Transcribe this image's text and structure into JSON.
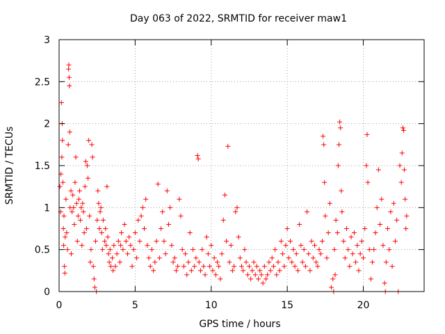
{
  "chart_data": {
    "type": "scatter",
    "title": "Day 063 of 2022, SRMTID for receiver maw1",
    "xlabel": "GPS time / hours",
    "ylabel": "SRMTID / TECUs",
    "xlim": [
      0,
      24
    ],
    "ylim": [
      0,
      3
    ],
    "xticks": [
      0,
      5,
      10,
      15,
      20
    ],
    "xtick_labels": [
      "0",
      "5",
      "10",
      "15",
      "20"
    ],
    "yticks": [
      0,
      0.5,
      1,
      1.5,
      2,
      2.5,
      3
    ],
    "ytick_labels": [
      "0",
      "0.5",
      "1",
      "1.5",
      "2",
      "2.5",
      "3"
    ],
    "grid": true,
    "marker": "+",
    "color": "#ff0000",
    "series": [
      {
        "name": "maw1",
        "points": [
          [
            0.05,
            1.25
          ],
          [
            0.1,
            0.95
          ],
          [
            0.12,
            1.4
          ],
          [
            0.15,
            2.25
          ],
          [
            0.18,
            1.6
          ],
          [
            0.2,
            2.0
          ],
          [
            0.22,
            1.8
          ],
          [
            0.25,
            1.3
          ],
          [
            0.28,
            0.75
          ],
          [
            0.3,
            0.55
          ],
          [
            0.32,
            0.9
          ],
          [
            0.35,
            0.3
          ],
          [
            0.38,
            0.22
          ],
          [
            0.4,
            0.65
          ],
          [
            0.45,
            1.1
          ],
          [
            0.5,
            0.7
          ],
          [
            0.55,
            0.5
          ],
          [
            0.6,
            1.75
          ],
          [
            0.62,
            2.65
          ],
          [
            0.64,
            2.7
          ],
          [
            0.66,
            2.55
          ],
          [
            0.68,
            2.45
          ],
          [
            0.7,
            1.9
          ],
          [
            0.72,
            1.0
          ],
          [
            0.78,
            1.2
          ],
          [
            0.8,
            0.45
          ],
          [
            0.85,
            0.95
          ],
          [
            0.9,
            1.15
          ],
          [
            0.95,
            1.0
          ],
          [
            1.0,
            0.8
          ],
          [
            1.05,
            1.3
          ],
          [
            1.1,
            1.6
          ],
          [
            1.15,
            1.05
          ],
          [
            1.2,
            0.6
          ],
          [
            1.25,
            0.9
          ],
          [
            1.3,
            1.1
          ],
          [
            1.35,
            1.2
          ],
          [
            1.4,
            0.85
          ],
          [
            1.45,
            1.0
          ],
          [
            1.5,
            0.55
          ],
          [
            1.55,
            1.05
          ],
          [
            1.6,
            0.95
          ],
          [
            1.65,
            0.7
          ],
          [
            1.7,
            1.25
          ],
          [
            1.75,
            1.55
          ],
          [
            1.8,
            0.75
          ],
          [
            1.85,
            1.5
          ],
          [
            1.9,
            1.35
          ],
          [
            1.95,
            1.8
          ],
          [
            2.0,
            0.9
          ],
          [
            2.05,
            0.35
          ],
          [
            2.1,
            0.5
          ],
          [
            2.15,
            1.75
          ],
          [
            2.2,
            1.6
          ],
          [
            2.25,
            0.3
          ],
          [
            2.3,
            0.15
          ],
          [
            2.35,
            0.05
          ],
          [
            2.4,
            0.6
          ],
          [
            2.45,
            0.0
          ],
          [
            2.5,
            0.85
          ],
          [
            2.55,
            1.2
          ],
          [
            2.6,
            1.05
          ],
          [
            2.65,
            0.75
          ],
          [
            2.7,
            0.95
          ],
          [
            2.75,
            1.0
          ],
          [
            2.8,
            0.7
          ],
          [
            2.85,
            0.5
          ],
          [
            2.9,
            0.85
          ],
          [
            3.0,
            0.6
          ],
          [
            3.05,
            0.75
          ],
          [
            3.1,
            0.55
          ],
          [
            3.15,
            1.25
          ],
          [
            3.2,
            0.65
          ],
          [
            3.25,
            0.45
          ],
          [
            3.3,
            0.35
          ],
          [
            3.35,
            0.5
          ],
          [
            3.4,
            0.3
          ],
          [
            3.5,
            0.4
          ],
          [
            3.55,
            0.25
          ],
          [
            3.6,
            0.55
          ],
          [
            3.7,
            0.3
          ],
          [
            3.8,
            0.45
          ],
          [
            3.9,
            0.6
          ],
          [
            4.0,
            0.35
          ],
          [
            4.05,
            0.55
          ],
          [
            4.1,
            0.7
          ],
          [
            4.2,
            0.5
          ],
          [
            4.3,
            0.8
          ],
          [
            4.4,
            0.6
          ],
          [
            4.5,
            0.45
          ],
          [
            4.6,
            0.65
          ],
          [
            4.7,
            0.55
          ],
          [
            4.8,
            0.3
          ],
          [
            4.9,
            0.5
          ],
          [
            5.0,
            0.7
          ],
          [
            5.1,
            0.4
          ],
          [
            5.2,
            0.85
          ],
          [
            5.3,
            0.6
          ],
          [
            5.4,
            0.9
          ],
          [
            5.5,
            1.0
          ],
          [
            5.6,
            0.75
          ],
          [
            5.7,
            1.1
          ],
          [
            5.8,
            0.55
          ],
          [
            5.9,
            0.4
          ],
          [
            6.0,
            0.3
          ],
          [
            6.1,
            0.5
          ],
          [
            6.2,
            0.25
          ],
          [
            6.3,
            0.35
          ],
          [
            6.4,
            0.6
          ],
          [
            6.5,
            1.28
          ],
          [
            6.6,
            0.4
          ],
          [
            6.7,
            0.75
          ],
          [
            6.8,
            0.95
          ],
          [
            6.9,
            0.6
          ],
          [
            7.0,
            0.45
          ],
          [
            7.1,
            1.2
          ],
          [
            7.2,
            0.8
          ],
          [
            7.3,
            1.0
          ],
          [
            7.4,
            0.55
          ],
          [
            7.5,
            0.35
          ],
          [
            7.6,
            0.4
          ],
          [
            7.7,
            0.25
          ],
          [
            7.8,
            0.3
          ],
          [
            7.9,
            1.1
          ],
          [
            8.0,
            0.9
          ],
          [
            8.1,
            0.5
          ],
          [
            8.2,
            0.3
          ],
          [
            8.3,
            0.45
          ],
          [
            8.4,
            0.2
          ],
          [
            8.5,
            0.35
          ],
          [
            8.6,
            0.7
          ],
          [
            8.7,
            0.25
          ],
          [
            8.8,
            0.5
          ],
          [
            8.9,
            0.3
          ],
          [
            9.0,
            0.4
          ],
          [
            9.1,
            1.62
          ],
          [
            9.15,
            1.58
          ],
          [
            9.2,
            0.35
          ],
          [
            9.3,
            0.25
          ],
          [
            9.4,
            0.5
          ],
          [
            9.5,
            0.3
          ],
          [
            9.6,
            0.2
          ],
          [
            9.7,
            0.65
          ],
          [
            9.8,
            0.45
          ],
          [
            9.9,
            0.3
          ],
          [
            10.0,
            0.55
          ],
          [
            10.1,
            0.25
          ],
          [
            10.2,
            0.4
          ],
          [
            10.3,
            0.2
          ],
          [
            10.4,
            0.35
          ],
          [
            10.5,
            0.3
          ],
          [
            10.6,
            0.15
          ],
          [
            10.7,
            0.45
          ],
          [
            10.8,
            0.85
          ],
          [
            10.9,
            1.15
          ],
          [
            11.0,
            0.6
          ],
          [
            11.1,
            1.73
          ],
          [
            11.2,
            0.35
          ],
          [
            11.3,
            0.55
          ],
          [
            11.4,
            0.25
          ],
          [
            11.5,
            0.3
          ],
          [
            11.6,
            0.95
          ],
          [
            11.7,
            1.0
          ],
          [
            11.8,
            0.65
          ],
          [
            11.9,
            0.4
          ],
          [
            12.0,
            0.3
          ],
          [
            12.1,
            0.25
          ],
          [
            12.2,
            0.5
          ],
          [
            12.3,
            0.35
          ],
          [
            12.4,
            0.2
          ],
          [
            12.5,
            0.3
          ],
          [
            12.6,
            0.15
          ],
          [
            12.7,
            0.25
          ],
          [
            12.8,
            0.35
          ],
          [
            12.9,
            0.2
          ],
          [
            13.0,
            0.3
          ],
          [
            13.1,
            0.15
          ],
          [
            13.2,
            0.25
          ],
          [
            13.3,
            0.2
          ],
          [
            13.4,
            0.1
          ],
          [
            13.5,
            0.3
          ],
          [
            13.6,
            0.15
          ],
          [
            13.7,
            0.2
          ],
          [
            13.8,
            0.35
          ],
          [
            13.9,
            0.25
          ],
          [
            14.0,
            0.4
          ],
          [
            14.1,
            0.3
          ],
          [
            14.2,
            0.5
          ],
          [
            14.3,
            0.2
          ],
          [
            14.4,
            0.35
          ],
          [
            14.5,
            0.25
          ],
          [
            14.6,
            0.6
          ],
          [
            14.7,
            0.45
          ],
          [
            14.8,
            0.3
          ],
          [
            14.9,
            0.55
          ],
          [
            15.0,
            0.75
          ],
          [
            15.1,
            0.4
          ],
          [
            15.2,
            0.6
          ],
          [
            15.3,
            0.35
          ],
          [
            15.4,
            0.5
          ],
          [
            15.5,
            0.3
          ],
          [
            15.6,
            0.45
          ],
          [
            15.7,
            0.25
          ],
          [
            15.8,
            0.8
          ],
          [
            15.9,
            0.55
          ],
          [
            16.0,
            0.35
          ],
          [
            16.1,
            0.5
          ],
          [
            16.2,
            0.3
          ],
          [
            16.3,
            0.95
          ],
          [
            16.4,
            0.45
          ],
          [
            16.5,
            0.25
          ],
          [
            16.6,
            0.6
          ],
          [
            16.7,
            0.4
          ],
          [
            16.8,
            0.55
          ],
          [
            16.9,
            0.35
          ],
          [
            17.0,
            0.3
          ],
          [
            17.1,
            0.5
          ],
          [
            17.2,
            0.45
          ],
          [
            17.3,
            0.6
          ],
          [
            17.35,
            1.85
          ],
          [
            17.4,
            1.75
          ],
          [
            17.45,
            1.3
          ],
          [
            17.5,
            0.9
          ],
          [
            17.6,
            0.4
          ],
          [
            17.7,
            0.7
          ],
          [
            17.8,
            1.05
          ],
          [
            17.9,
            0.05
          ],
          [
            18.0,
            0.15
          ],
          [
            18.05,
            0.0
          ],
          [
            18.1,
            0.5
          ],
          [
            18.15,
            0.2
          ],
          [
            18.2,
            0.85
          ],
          [
            18.3,
            0.7
          ],
          [
            18.35,
            1.5
          ],
          [
            18.4,
            1.75
          ],
          [
            18.45,
            2.02
          ],
          [
            18.5,
            1.95
          ],
          [
            18.55,
            1.2
          ],
          [
            18.6,
            0.95
          ],
          [
            18.7,
            0.6
          ],
          [
            18.8,
            0.4
          ],
          [
            18.9,
            0.75
          ],
          [
            19.0,
            0.5
          ],
          [
            19.1,
            0.3
          ],
          [
            19.2,
            0.65
          ],
          [
            19.3,
            0.45
          ],
          [
            19.4,
            0.7
          ],
          [
            19.5,
            0.35
          ],
          [
            19.6,
            0.55
          ],
          [
            19.7,
            0.25
          ],
          [
            19.8,
            0.45
          ],
          [
            19.9,
            0.6
          ],
          [
            20.0,
            0.4
          ],
          [
            20.1,
            0.75
          ],
          [
            20.2,
            1.5
          ],
          [
            20.25,
            1.87
          ],
          [
            20.3,
            1.3
          ],
          [
            20.4,
            0.5
          ],
          [
            20.5,
            0.15
          ],
          [
            20.6,
            0.35
          ],
          [
            20.7,
            0.5
          ],
          [
            20.8,
            0.7
          ],
          [
            20.9,
            1.0
          ],
          [
            21.0,
            1.45
          ],
          [
            21.1,
            0.8
          ],
          [
            21.2,
            1.1
          ],
          [
            21.3,
            0.55
          ],
          [
            21.4,
            0.1
          ],
          [
            21.45,
            0.0
          ],
          [
            21.5,
            0.35
          ],
          [
            21.6,
            0.75
          ],
          [
            21.7,
            0.5
          ],
          [
            21.8,
            0.95
          ],
          [
            21.9,
            0.3
          ],
          [
            22.0,
            1.05
          ],
          [
            22.1,
            0.6
          ],
          [
            22.2,
            0.85
          ],
          [
            22.3,
            0.0
          ],
          [
            22.4,
            1.5
          ],
          [
            22.5,
            1.3
          ],
          [
            22.55,
            1.65
          ],
          [
            22.6,
            1.95
          ],
          [
            22.65,
            1.92
          ],
          [
            22.7,
            1.45
          ],
          [
            22.75,
            1.1
          ],
          [
            22.8,
            0.75
          ],
          [
            22.85,
            0.9
          ]
        ]
      }
    ]
  }
}
